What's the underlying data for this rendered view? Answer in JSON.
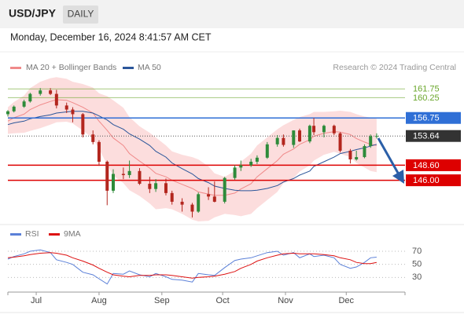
{
  "header": {
    "symbol": "USD/JPY",
    "period": "DAILY",
    "timestamp": "Monday, December 16, 2024 8:41:57 AM CET"
  },
  "chart_data": {
    "type": "candlestick",
    "source": "Research © 2024 Trading Central",
    "x": [
      "2024-06-17",
      "2024-06-20",
      "2024-06-25",
      "2024-06-28",
      "2024-07-03",
      "2024-07-08",
      "2024-07-11",
      "2024-07-16",
      "2024-07-19",
      "2024-07-24",
      "2024-07-29",
      "2024-08-01",
      "2024-08-05",
      "2024-08-08",
      "2024-08-13",
      "2024-08-16",
      "2024-08-21",
      "2024-08-26",
      "2024-08-29",
      "2024-09-03",
      "2024-09-06",
      "2024-09-11",
      "2024-09-16",
      "2024-09-19",
      "2024-09-24",
      "2024-09-27",
      "2024-10-02",
      "2024-10-07",
      "2024-10-10",
      "2024-10-15",
      "2024-10-18",
      "2024-10-23",
      "2024-10-28",
      "2024-10-31",
      "2024-11-05",
      "2024-11-08",
      "2024-11-13",
      "2024-11-15",
      "2024-11-20",
      "2024-11-25",
      "2024-11-28",
      "2024-12-03",
      "2024-12-06",
      "2024-12-10",
      "2024-12-13",
      "2024-12-16"
    ],
    "open": [
      157.4,
      157.9,
      158.7,
      159.6,
      160.9,
      161.5,
      160.9,
      158.9,
      158.2,
      157.4,
      153.9,
      152.6,
      149.2,
      144.2,
      147.1,
      146.9,
      147.6,
      145.4,
      144.5,
      145.5,
      143.8,
      142.3,
      141.8,
      140.6,
      143.6,
      143.2,
      142.3,
      146.4,
      148.2,
      148.6,
      149.2,
      149.9,
      152.2,
      153.3,
      152.1,
      154.6,
      152.7,
      155.4,
      154.3,
      155.4,
      154.1,
      151.1,
      149.6,
      150.0,
      151.9,
      153.6
    ],
    "high": [
      158.1,
      158.9,
      159.9,
      161.1,
      161.9,
      161.9,
      161.6,
      159.4,
      158.6,
      157.6,
      154.6,
      152.9,
      149.4,
      147.9,
      148.2,
      149.4,
      148.1,
      146.6,
      146.2,
      146.3,
      144.2,
      142.9,
      142.1,
      143.9,
      144.8,
      145.8,
      146.6,
      148.6,
      149.4,
      149.7,
      150.3,
      152.6,
      153.8,
      153.9,
      154.6,
      154.9,
      155.6,
      156.75,
      155.6,
      155.6,
      154.3,
      151.4,
      151.1,
      152.2,
      153.9,
      154.1
    ],
    "low": [
      157.0,
      157.7,
      158.5,
      159.4,
      160.6,
      160.7,
      158.4,
      157.6,
      156.0,
      153.4,
      152.2,
      148.5,
      141.7,
      143.8,
      146.2,
      146.4,
      145.2,
      143.8,
      144.0,
      143.4,
      141.8,
      140.6,
      139.6,
      140.4,
      142.6,
      142.2,
      142.0,
      146.1,
      147.6,
      148.3,
      148.8,
      149.7,
      151.8,
      151.8,
      151.6,
      152.6,
      152.4,
      153.8,
      153.4,
      153.8,
      150.8,
      148.9,
      149.4,
      149.8,
      151.6,
      153.2
    ],
    "close": [
      157.9,
      158.7,
      159.6,
      160.9,
      161.5,
      160.9,
      158.9,
      158.2,
      157.4,
      153.9,
      152.6,
      149.2,
      144.2,
      147.1,
      146.9,
      147.6,
      145.4,
      144.5,
      145.5,
      143.8,
      142.3,
      141.8,
      140.6,
      143.6,
      143.2,
      142.3,
      146.4,
      148.2,
      148.6,
      149.2,
      149.9,
      152.2,
      153.3,
      152.1,
      154.6,
      152.7,
      155.4,
      154.3,
      155.4,
      154.1,
      151.1,
      149.6,
      150.0,
      151.9,
      153.6,
      153.64
    ],
    "up_color": "#2e8b3a",
    "down_color": "#b3261e",
    "series": [
      {
        "name": "MA 20 + Bollinger Bands",
        "color": "#f08a8a",
        "band_color": "#fcd7d7",
        "values": [
          156.2,
          156.8,
          157.4,
          158.2,
          159.0,
          159.6,
          159.9,
          159.8,
          159.4,
          158.6,
          157.6,
          156.2,
          154.6,
          153.3,
          152.0,
          150.6,
          149.3,
          148.1,
          147.2,
          146.6,
          146.0,
          145.3,
          144.6,
          144.0,
          143.6,
          143.4,
          143.4,
          143.8,
          144.5,
          145.4,
          146.6,
          148.0,
          149.4,
          150.5,
          151.4,
          152.2,
          153.0,
          153.6,
          154.1,
          154.4,
          154.3,
          153.9,
          153.2,
          152.6,
          152.2,
          152.0
        ],
        "upper": [
          158.6,
          159.5,
          160.6,
          161.9,
          163.0,
          163.6,
          163.8,
          163.5,
          163.0,
          162.6,
          162.0,
          161.0,
          160.5,
          159.8,
          158.5,
          156.9,
          155.3,
          154.2,
          153.4,
          152.0,
          151.0,
          150.4,
          150.0,
          149.6,
          148.4,
          147.2,
          146.6,
          147.6,
          149.2,
          150.6,
          152.0,
          153.4,
          154.8,
          155.5,
          156.4,
          156.9,
          157.4,
          157.8,
          157.8,
          157.9,
          158.0,
          157.8,
          157.4,
          157.0,
          156.8,
          156.6
        ],
        "lower": [
          154.0,
          154.1,
          154.2,
          154.5,
          155.0,
          155.6,
          156.0,
          156.1,
          155.8,
          154.6,
          153.2,
          151.4,
          148.7,
          146.8,
          145.5,
          144.3,
          143.3,
          142.0,
          141.0,
          141.2,
          141.0,
          140.2,
          139.2,
          138.9,
          139.0,
          139.6,
          140.2,
          140.0,
          139.8,
          140.2,
          141.2,
          142.6,
          144.0,
          145.5,
          146.4,
          147.5,
          148.6,
          149.4,
          150.4,
          150.9,
          150.6,
          150.0,
          149.0,
          148.2,
          147.6,
          147.4
        ]
      },
      {
        "name": "MA 50",
        "color": "#2b569a",
        "values": [
          155.6,
          155.9,
          156.2,
          156.6,
          157.0,
          157.3,
          157.6,
          157.8,
          157.9,
          157.9,
          157.6,
          157.1,
          156.4,
          155.6,
          154.8,
          154.0,
          153.1,
          152.0,
          151.0,
          150.0,
          149.0,
          148.0,
          147.1,
          146.3,
          145.6,
          145.0,
          144.6,
          144.3,
          144.2,
          144.2,
          144.3,
          144.6,
          145.1,
          145.7,
          146.3,
          146.9,
          147.6,
          148.4,
          149.2,
          150.0,
          150.6,
          151.0,
          151.3,
          151.6,
          151.9,
          152.2
        ]
      }
    ],
    "levels": [
      {
        "value": 161.75,
        "color": "#6aa62b",
        "boxed": false
      },
      {
        "value": 160.25,
        "color": "#6aa62b",
        "boxed": false
      },
      {
        "value": 156.75,
        "color": "#2f6fd6",
        "boxed": true
      },
      {
        "value": 153.64,
        "color": "#333333",
        "boxed": true,
        "dotted": true
      },
      {
        "value": 148.6,
        "color": "#dd0000",
        "boxed": true,
        "label": "148.60"
      },
      {
        "value": 146.0,
        "color": "#dd0000",
        "boxed": true,
        "label": "146.00"
      }
    ],
    "ylim": [
      138.5,
      164.5
    ],
    "xlim": [
      "2024-06-17",
      "2024-12-30"
    ],
    "xticks": [
      {
        "value": "2024-07-01",
        "label": "Jul"
      },
      {
        "value": "2024-08-01",
        "label": "Aug"
      },
      {
        "value": "2024-09-01",
        "label": "Sep"
      },
      {
        "value": "2024-10-01",
        "label": "Oct"
      },
      {
        "value": "2024-11-01",
        "label": "Nov"
      },
      {
        "value": "2024-12-01",
        "label": "Dec"
      }
    ],
    "rsi": {
      "series": [
        {
          "name": "RSI",
          "color": "#5b80d8",
          "values": [
            58,
            62,
            66,
            70,
            72,
            68,
            57,
            53,
            50,
            38,
            34,
            28,
            20,
            36,
            35,
            40,
            34,
            31,
            36,
            31,
            27,
            26,
            23,
            36,
            34,
            33,
            45,
            56,
            58,
            60,
            63,
            68,
            70,
            64,
            68,
            60,
            66,
            62,
            64,
            60,
            50,
            44,
            46,
            53,
            60,
            61
          ]
        },
        {
          "name": "9MA",
          "color": "#dd1111",
          "values": [
            60,
            61,
            63,
            65,
            67,
            68,
            67,
            64,
            60,
            55,
            49,
            44,
            38,
            34,
            32,
            31,
            33,
            33,
            34,
            34,
            33,
            31,
            29,
            30,
            31,
            32,
            35,
            39,
            44,
            50,
            55,
            60,
            64,
            66,
            67,
            66,
            66,
            66,
            65,
            63,
            60,
            57,
            53,
            51,
            51,
            53
          ]
        }
      ],
      "ylim": [
        10,
        82
      ],
      "yticks": [
        30,
        50,
        70
      ],
      "grid": true
    }
  }
}
